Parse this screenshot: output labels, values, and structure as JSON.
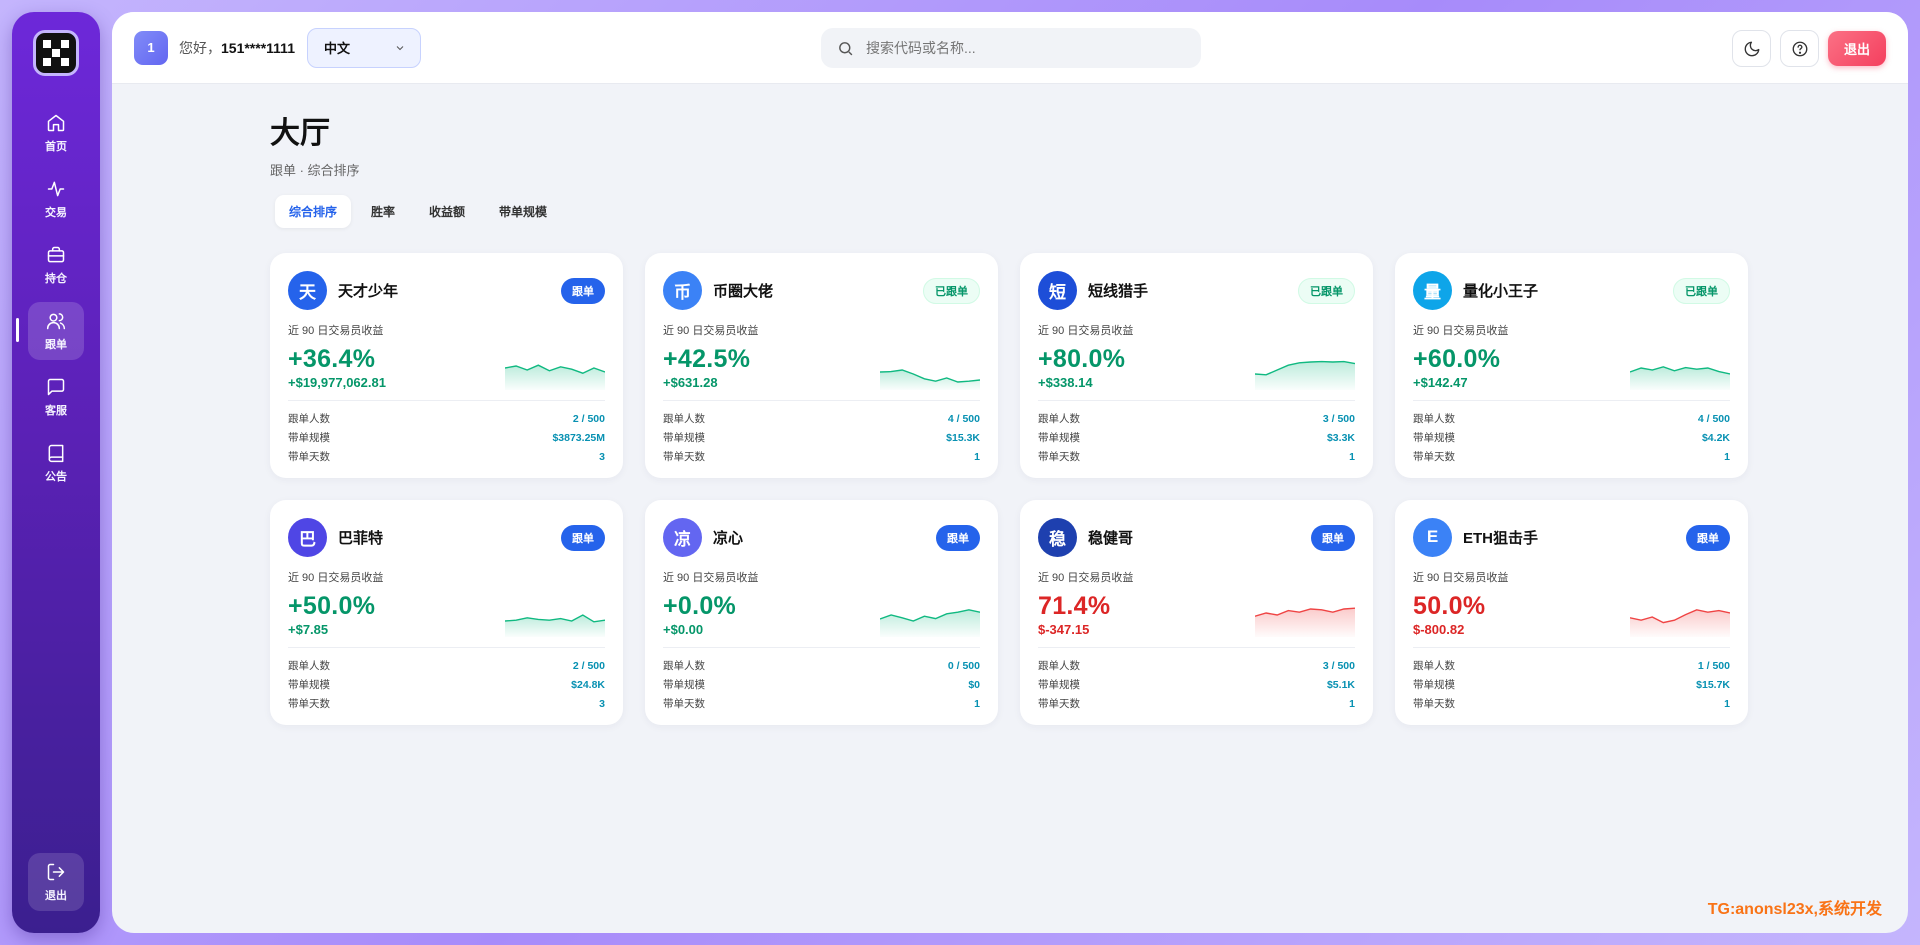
{
  "sidebar": {
    "items": [
      {
        "label": "首页",
        "icon": "home-icon",
        "active": false
      },
      {
        "label": "交易",
        "icon": "activity-icon",
        "active": false
      },
      {
        "label": "持仓",
        "icon": "briefcase-icon",
        "active": false
      },
      {
        "label": "跟单",
        "icon": "users-icon",
        "active": true
      },
      {
        "label": "客服",
        "icon": "chat-icon",
        "active": false
      },
      {
        "label": "公告",
        "icon": "book-icon",
        "active": false
      }
    ],
    "logout_label": "退出"
  },
  "topbar": {
    "avatar_text": "1",
    "greeting_prefix": "您好，",
    "username": "151****1111",
    "language": "中文",
    "search_placeholder": "搜索代码或名称...",
    "logout_label": "退出"
  },
  "page": {
    "title": "大厅",
    "subtitle": "跟单 · 综合排序"
  },
  "tabs": [
    {
      "label": "综合排序",
      "active": true
    },
    {
      "label": "胜率",
      "active": false
    },
    {
      "label": "收益额",
      "active": false
    },
    {
      "label": "带单规模",
      "active": false
    }
  ],
  "stat_labels": {
    "followers": "跟单人数",
    "scale": "带单规模",
    "days": "带单天数",
    "metric": "近 90 日交易员收益"
  },
  "traders": [
    {
      "avatar": "天",
      "color": "#2563eb",
      "name": "天才少年",
      "button": "跟单",
      "followed": false,
      "pct": "+36.4%",
      "amount": "+$19,977,062.81",
      "positive": true,
      "followers": "2 / 500",
      "scale": "$3873.25M",
      "days": "3",
      "spark": [
        0.55,
        0.6,
        0.5,
        0.62,
        0.48,
        0.58,
        0.52,
        0.42,
        0.55,
        0.45
      ]
    },
    {
      "avatar": "币",
      "color": "#3b82f6",
      "name": "币圈大佬",
      "button": "已跟单",
      "followed": true,
      "pct": "+42.5%",
      "amount": "+$631.28",
      "positive": true,
      "followers": "4 / 500",
      "scale": "$15.3K",
      "days": "1",
      "spark": [
        0.45,
        0.46,
        0.5,
        0.4,
        0.28,
        0.22,
        0.3,
        0.2,
        0.22,
        0.25
      ]
    },
    {
      "avatar": "短",
      "color": "#1d4ed8",
      "name": "短线猎手",
      "button": "已跟单",
      "followed": true,
      "pct": "+80.0%",
      "amount": "+$338.14",
      "positive": true,
      "followers": "3 / 500",
      "scale": "$3.3K",
      "days": "1",
      "spark": [
        0.4,
        0.38,
        0.5,
        0.62,
        0.68,
        0.7,
        0.71,
        0.7,
        0.71,
        0.66
      ]
    },
    {
      "avatar": "量",
      "color": "#0ea5e9",
      "name": "量化小王子",
      "button": "已跟单",
      "followed": true,
      "pct": "+60.0%",
      "amount": "+$142.47",
      "positive": true,
      "followers": "4 / 500",
      "scale": "$4.2K",
      "days": "1",
      "spark": [
        0.45,
        0.55,
        0.5,
        0.58,
        0.48,
        0.56,
        0.52,
        0.55,
        0.46,
        0.4
      ]
    },
    {
      "avatar": "巴",
      "color": "#4f46e5",
      "name": "巴菲特",
      "button": "跟单",
      "followed": false,
      "pct": "+50.0%",
      "amount": "+$7.85",
      "positive": true,
      "followers": "2 / 500",
      "scale": "$24.8K",
      "days": "3",
      "spark": [
        0.4,
        0.42,
        0.48,
        0.44,
        0.42,
        0.46,
        0.4,
        0.55,
        0.38,
        0.42
      ]
    },
    {
      "avatar": "凉",
      "color": "#6366f1",
      "name": "凉心",
      "button": "跟单",
      "followed": false,
      "pct": "+0.0%",
      "amount": "+$0.00",
      "positive": true,
      "followers": "0 / 500",
      "scale": "$0",
      "days": "1",
      "spark": [
        0.45,
        0.55,
        0.48,
        0.4,
        0.52,
        0.46,
        0.58,
        0.62,
        0.68,
        0.62
      ]
    },
    {
      "avatar": "稳",
      "color": "#1e40af",
      "name": "稳健哥",
      "button": "跟单",
      "followed": false,
      "pct": "71.4%",
      "amount": "$-347.15",
      "positive": false,
      "followers": "3 / 500",
      "scale": "$5.1K",
      "days": "1",
      "spark": [
        0.52,
        0.6,
        0.55,
        0.66,
        0.62,
        0.7,
        0.68,
        0.62,
        0.7,
        0.72
      ]
    },
    {
      "avatar": "E",
      "color": "#3b82f6",
      "name": "ETH狙击手",
      "button": "跟单",
      "followed": false,
      "pct": "50.0%",
      "amount": "$-800.82",
      "positive": false,
      "followers": "1 / 500",
      "scale": "$15.7K",
      "days": "1",
      "spark": [
        0.48,
        0.42,
        0.5,
        0.36,
        0.42,
        0.56,
        0.68,
        0.62,
        0.66,
        0.6
      ]
    }
  ],
  "watermark": "TG:anonsl23x,系统开发"
}
